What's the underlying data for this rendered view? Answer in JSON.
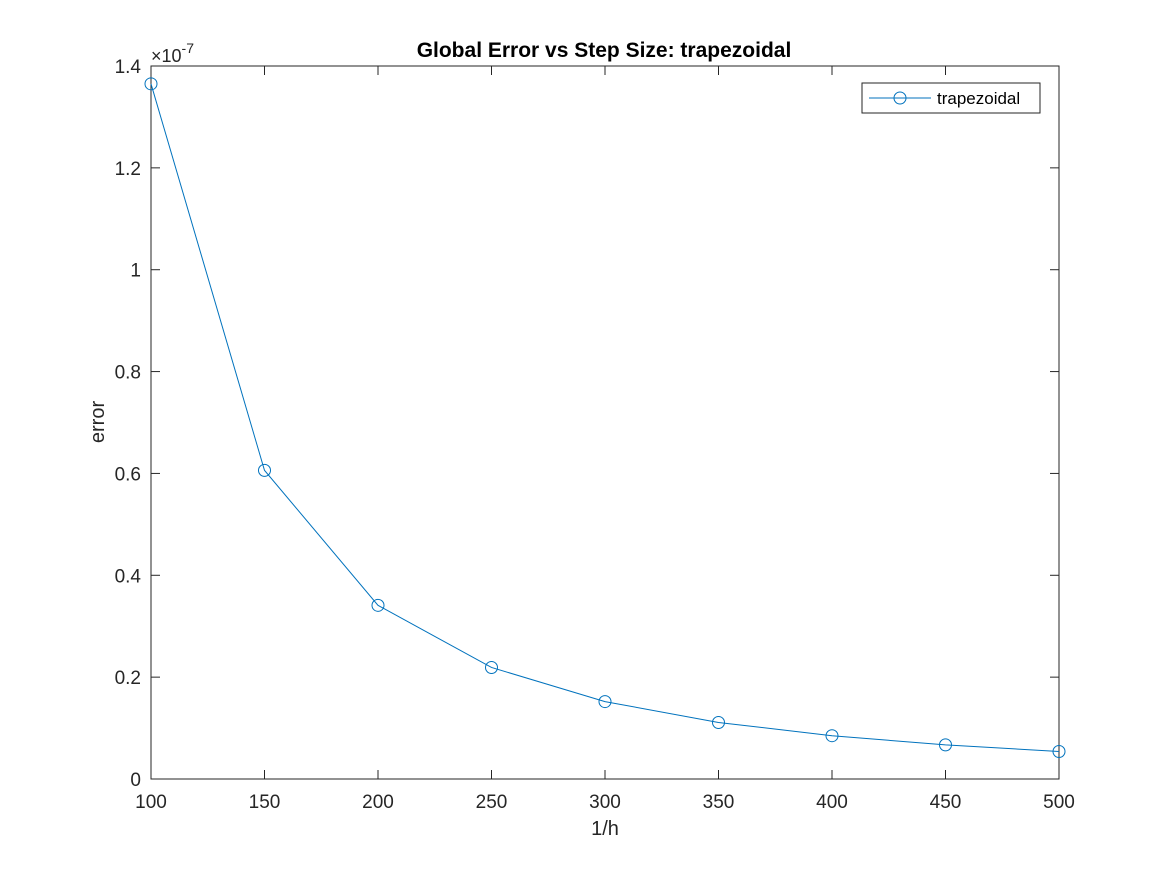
{
  "chart_data": {
    "type": "line",
    "title": "Global Error vs Step Size: trapezoidal",
    "xlabel": "1/h",
    "ylabel": "error",
    "y_exponent_label": "×10",
    "y_exponent_power": "-7",
    "xlim": [
      100,
      500
    ],
    "ylim": [
      0,
      1.4
    ],
    "x_ticks": [
      100,
      150,
      200,
      250,
      300,
      350,
      400,
      450,
      500
    ],
    "x_tick_labels": [
      "100",
      "150",
      "200",
      "250",
      "300",
      "350",
      "400",
      "450",
      "500"
    ],
    "y_ticks": [
      0,
      0.2,
      0.4,
      0.6,
      0.8,
      1.0,
      1.2,
      1.4
    ],
    "y_tick_labels": [
      "0",
      "0.2",
      "0.4",
      "0.6",
      "0.8",
      "1",
      "1.2",
      "1.4"
    ],
    "grid": false,
    "legend_position": "top-right",
    "series": [
      {
        "name": "trapezoidal",
        "color": "#0072bd",
        "marker": "circle",
        "x": [
          100,
          150,
          200,
          250,
          300,
          350,
          400,
          450,
          500
        ],
        "y": [
          1.365,
          0.606,
          0.341,
          0.219,
          0.152,
          0.111,
          0.085,
          0.067,
          0.054
        ]
      }
    ]
  }
}
